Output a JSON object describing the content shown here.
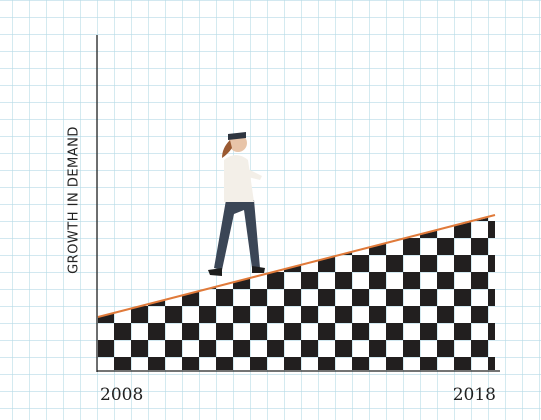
{
  "y_axis_label": "GROWTH IN DEMAND",
  "x_labels": [
    "2008",
    "2018"
  ]
}
